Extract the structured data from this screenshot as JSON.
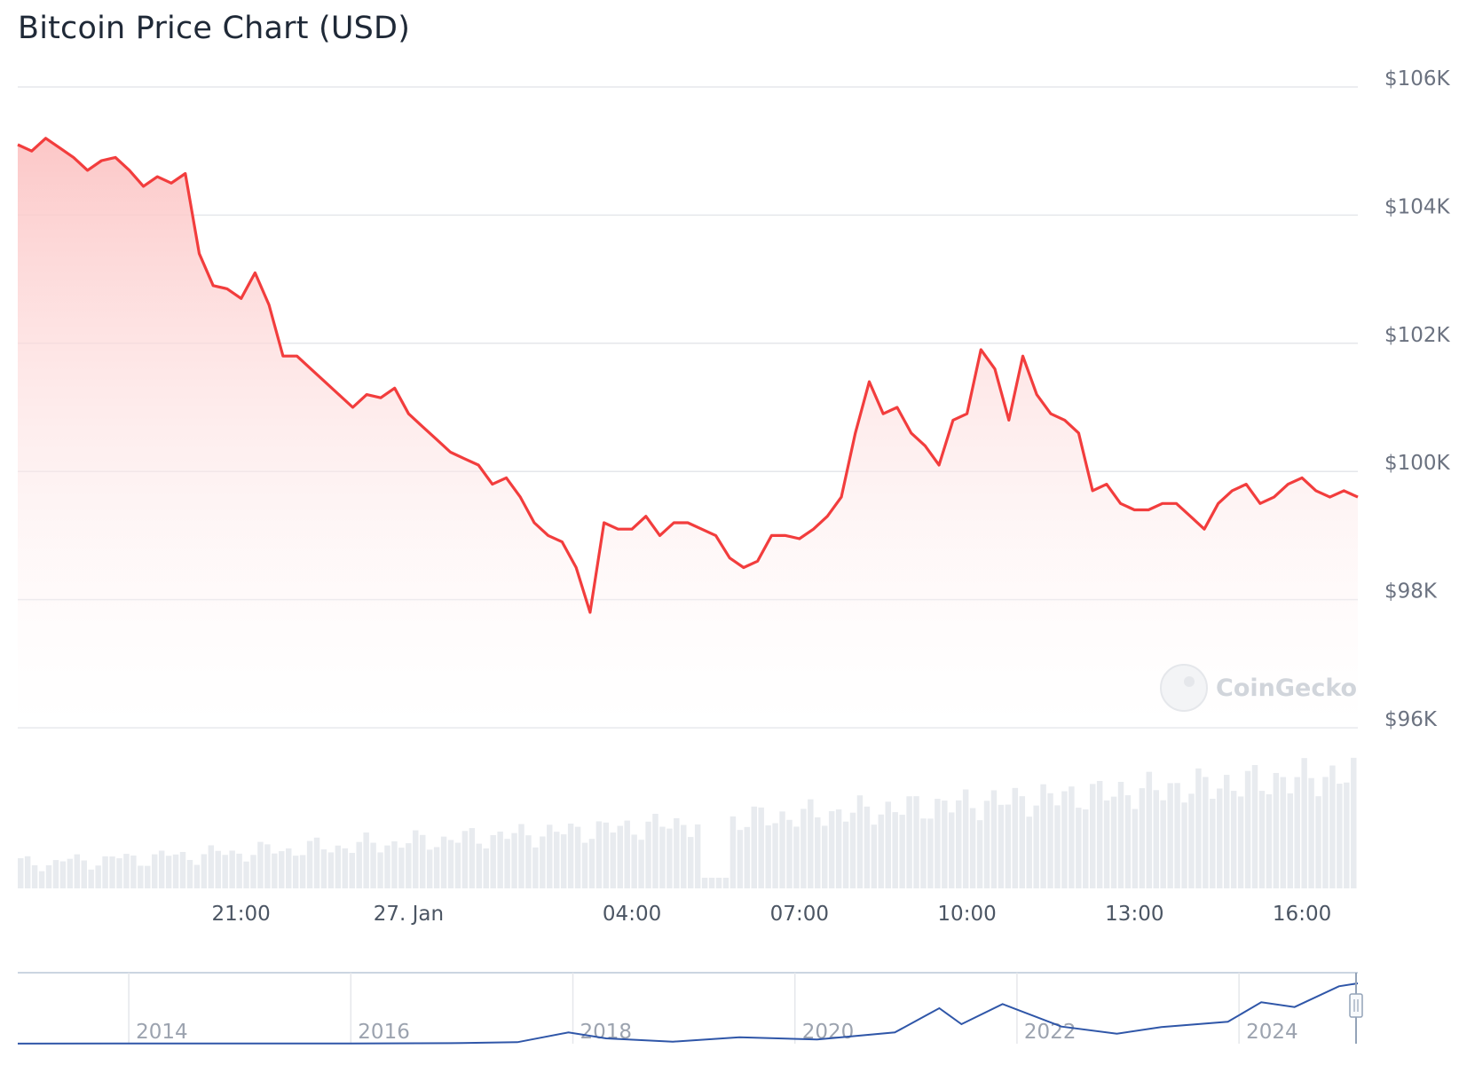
{
  "title": "Bitcoin Price Chart (USD)",
  "watermark": "CoinGecko",
  "colors": {
    "price_line": "#f23d3d",
    "area_top": "#fcc4c4",
    "grid": "#e5e7eb",
    "volume": "#e8ebef",
    "navigator_line": "#2f56a8"
  },
  "chart_data": {
    "type": "line",
    "title": "Bitcoin Price Chart (USD)",
    "y_unit": "USD",
    "ylim": [
      96000,
      106000
    ],
    "y_ticks": [
      96000,
      98000,
      100000,
      102000,
      104000,
      106000
    ],
    "y_tick_labels": [
      "$96K",
      "$98K",
      "$100K",
      "$102K",
      "$104K",
      "$106K"
    ],
    "x_tick_labels": [
      "21:00",
      "27. Jan",
      "04:00",
      "07:00",
      "10:00",
      "13:00",
      "16:00"
    ],
    "x_tick_hours": [
      21,
      24,
      28,
      31,
      34,
      37,
      40
    ],
    "x_range_hours": [
      17,
      41
    ],
    "grid": true,
    "series": [
      {
        "type": "line",
        "x_hours": [
          17.0,
          17.25,
          17.5,
          17.75,
          18.0,
          18.25,
          18.5,
          18.75,
          19.0,
          19.25,
          19.5,
          19.75,
          20.0,
          20.25,
          20.5,
          20.75,
          21.0,
          21.25,
          21.5,
          21.75,
          22.0,
          22.25,
          22.5,
          22.75,
          23.0,
          23.25,
          23.5,
          23.75,
          24.0,
          24.25,
          24.5,
          24.75,
          25.0,
          25.25,
          25.5,
          25.75,
          26.0,
          26.25,
          26.5,
          26.75,
          27.0,
          27.25,
          27.5,
          27.75,
          28.0,
          28.25,
          28.5,
          28.75,
          29.0,
          29.25,
          29.5,
          29.75,
          30.0,
          30.25,
          30.5,
          30.75,
          31.0,
          31.25,
          31.5,
          31.75,
          32.0,
          32.25,
          32.5,
          32.75,
          33.0,
          33.25,
          33.5,
          33.75,
          34.0,
          34.25,
          34.5,
          34.75,
          35.0,
          35.25,
          35.5,
          35.75,
          36.0,
          36.25,
          36.5,
          36.75,
          37.0,
          37.25,
          37.5,
          37.75,
          38.0,
          38.25,
          38.5,
          38.75,
          39.0,
          39.25,
          39.5,
          39.75,
          40.0,
          40.25,
          40.5,
          40.75,
          41.0
        ],
        "values": [
          105100,
          105000,
          105200,
          105050,
          104900,
          104700,
          104850,
          104900,
          104700,
          104450,
          104600,
          104500,
          104650,
          103400,
          102900,
          102850,
          102700,
          103100,
          102600,
          101800,
          101800,
          101600,
          101400,
          101200,
          101000,
          101200,
          101150,
          101300,
          100900,
          100700,
          100500,
          100300,
          100200,
          100100,
          99800,
          99900,
          99600,
          99200,
          99000,
          98900,
          98500,
          97800,
          99200,
          99100,
          99100,
          99300,
          99000,
          99200,
          99200,
          99100,
          99000,
          98650,
          98500,
          98600,
          99000,
          99000,
          98950,
          99100,
          99300,
          99600,
          100600,
          101400,
          100900,
          101000,
          100600,
          100400,
          100100,
          100800,
          100900,
          101900,
          101600,
          100800,
          101800,
          101200,
          100900,
          100800,
          100600,
          99700,
          99800,
          99500,
          99400,
          99400,
          99500,
          99500,
          99300,
          99100,
          99500,
          99700,
          99800,
          99500,
          99600,
          99800,
          99900,
          99700,
          99600,
          99700,
          99600
        ]
      }
    ],
    "volume_bars": 190,
    "navigator": {
      "type": "line",
      "x_year_ticks": [
        "2014",
        "2016",
        "2018",
        "2020",
        "2022",
        "2024"
      ],
      "years": [
        2013.0,
        2014.0,
        2015.0,
        2016.0,
        2017.0,
        2017.5,
        2017.96,
        2018.3,
        2018.9,
        2019.5,
        2020.2,
        2020.9,
        2021.3,
        2021.5,
        2021.87,
        2022.4,
        2022.9,
        2023.3,
        2023.9,
        2024.2,
        2024.5,
        2024.9,
        2025.07
      ],
      "values_usd": [
        100,
        500,
        300,
        400,
        1000,
        2500,
        19000,
        9000,
        3500,
        11000,
        7000,
        19000,
        60000,
        33000,
        67000,
        29000,
        17000,
        28000,
        37000,
        70000,
        62000,
        97000,
        102000
      ]
    }
  }
}
